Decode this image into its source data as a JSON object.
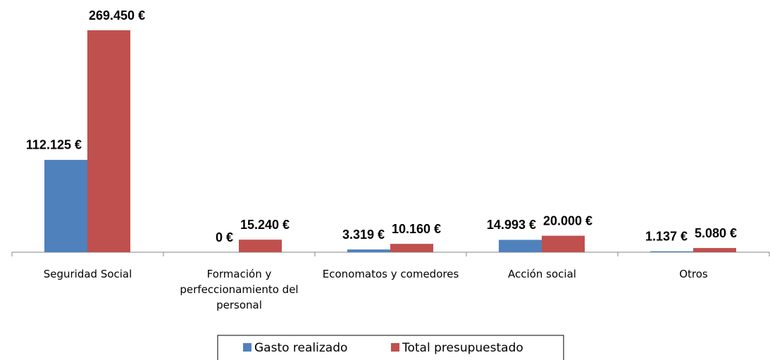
{
  "chart_data": {
    "type": "bar",
    "categories": [
      "Seguridad Social",
      "Formación y perfeccionamiento del personal",
      "Economatos y comedores",
      "Acción social",
      "Otros"
    ],
    "series": [
      {
        "name": "Gasto realizado",
        "color": "#4f81bd",
        "values": [
          112125,
          0,
          3319,
          14993,
          1137
        ],
        "value_labels": [
          "112.125 €",
          "0 €",
          "3.319 €",
          "14.993 €",
          "1.137 €"
        ]
      },
      {
        "name": "Total presupuestado",
        "color": "#c0504d",
        "values": [
          269450,
          15240,
          10160,
          20000,
          5080
        ],
        "value_labels": [
          "269.450 €",
          "15.240 €",
          "10.160 €",
          "20.000 €",
          "5.080 €"
        ]
      }
    ],
    "legend": "bottom"
  }
}
